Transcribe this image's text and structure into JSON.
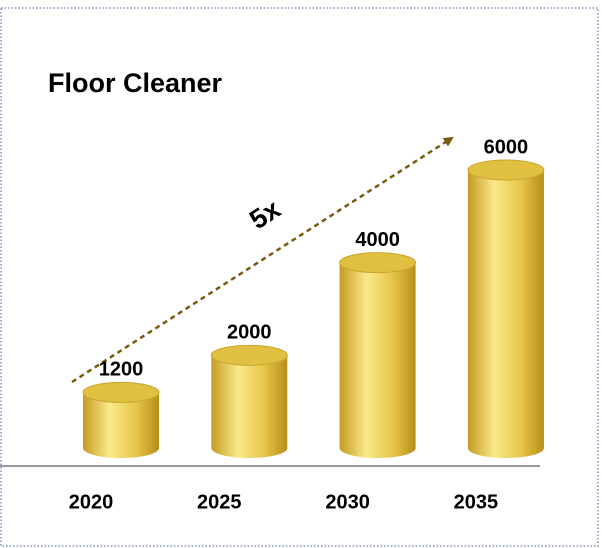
{
  "chart_data": {
    "type": "bar",
    "title": "Floor Cleaner",
    "categories": [
      "2020",
      "2025",
      "2030",
      "2035"
    ],
    "values": [
      1200,
      2000,
      4000,
      6000
    ],
    "color": "#e0c040",
    "annotation": "5x"
  }
}
